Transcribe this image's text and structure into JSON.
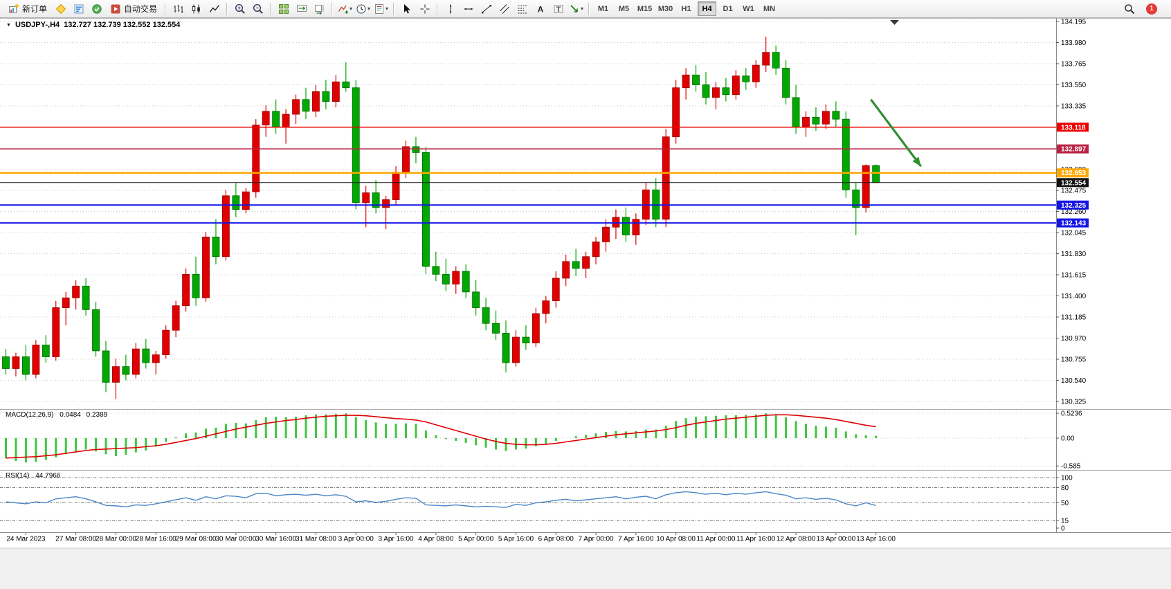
{
  "window": {
    "menu_marker": "▼",
    "symbol_period": "USDJPY-,H4",
    "quote": "132.727 132.739 132.552 132.554"
  },
  "toolbar": {
    "groups": [
      {
        "name": "trade",
        "items": [
          {
            "name": "new-order-button",
            "icon": "new-order-icon",
            "label": "新订单"
          },
          {
            "name": "metaeditor-button",
            "icon": "metaeditor-icon"
          },
          {
            "name": "market-depth-button",
            "icon": "market-depth-icon"
          },
          {
            "name": "market-watch-button",
            "icon": "market-watch-icon"
          },
          {
            "name": "autotrading-button",
            "icon": "autotrading-icon",
            "label": "自动交易"
          }
        ]
      },
      {
        "name": "chart-types",
        "items": [
          {
            "name": "bar-chart-button",
            "icon": "bar-chart-icon"
          },
          {
            "name": "candlestick-button",
            "icon": "candlestick-icon"
          },
          {
            "name": "line-chart-button",
            "icon": "line-chart-icon"
          }
        ]
      },
      {
        "name": "zoom",
        "items": [
          {
            "name": "zoom-in-button",
            "icon": "zoom-in-icon"
          },
          {
            "name": "zoom-out-button",
            "icon": "zoom-out-icon"
          }
        ]
      },
      {
        "name": "windows",
        "items": [
          {
            "name": "tile-windows-button",
            "icon": "tile-windows-icon"
          },
          {
            "name": "auto-scroll-button",
            "icon": "auto-scroll-icon"
          },
          {
            "name": "chart-shift-button",
            "icon": "chart-shift-icon"
          }
        ]
      },
      {
        "name": "chart-tools",
        "items": [
          {
            "name": "indicators-button",
            "icon": "indicators-icon",
            "dropdown": true
          },
          {
            "name": "periods-button",
            "icon": "periods-icon",
            "dropdown": true
          },
          {
            "name": "templates-button",
            "icon": "templates-icon",
            "dropdown": true
          }
        ]
      },
      {
        "name": "cursor-tools",
        "items": [
          {
            "name": "cursor-button",
            "icon": "cursor-icon"
          },
          {
            "name": "crosshair-button",
            "icon": "crosshair-icon"
          }
        ]
      },
      {
        "name": "drawing-tools",
        "items": [
          {
            "name": "vertical-line-button",
            "icon": "vline-icon"
          },
          {
            "name": "horizontal-line-button",
            "icon": "hline-icon"
          },
          {
            "name": "trendline-button",
            "icon": "trendline-icon"
          },
          {
            "name": "channel-button",
            "icon": "channel-icon"
          },
          {
            "name": "fibonacci-button",
            "icon": "fibonacci-icon"
          },
          {
            "name": "text-button",
            "icon": "text-icon"
          },
          {
            "name": "label-button",
            "icon": "label-icon"
          },
          {
            "name": "arrows-button",
            "icon": "arrows-icon",
            "dropdown": true
          }
        ]
      },
      {
        "name": "timeframes",
        "items": [
          {
            "name": "tf-m1-button",
            "label": "M1"
          },
          {
            "name": "tf-m5-button",
            "label": "M5"
          },
          {
            "name": "tf-m15-button",
            "label": "M15"
          },
          {
            "name": "tf-m30-button",
            "label": "M30"
          },
          {
            "name": "tf-h1-button",
            "label": "H1"
          },
          {
            "name": "tf-h4-button",
            "label": "H4",
            "active": true
          },
          {
            "name": "tf-d1-button",
            "label": "D1"
          },
          {
            "name": "tf-w1-button",
            "label": "W1"
          },
          {
            "name": "tf-mn-button",
            "label": "MN"
          }
        ]
      }
    ],
    "right": [
      {
        "name": "search-button",
        "icon": "search-icon"
      },
      {
        "name": "notifications-badge",
        "badge": "1"
      }
    ]
  },
  "chart_data": {
    "type": "candlestick",
    "symbol": "USDJPY-",
    "timeframe": "H4",
    "last_quote": {
      "open": "132.727",
      "high": "132.739",
      "low": "132.552",
      "close": "132.554"
    },
    "colors": {
      "up": "#e00000",
      "up_stroke": "#990000",
      "down": "#00a800",
      "down_stroke": "#006600",
      "grid": "#c9c9c9"
    },
    "price_axis": {
      "ticks": [
        "134.195",
        "133.980",
        "133.765",
        "133.550",
        "133.335",
        "133.120",
        "132.905",
        "132.690",
        "132.475",
        "132.260",
        "132.045",
        "131.830",
        "131.615",
        "131.400",
        "131.185",
        "130.970",
        "130.755",
        "130.540",
        "130.325"
      ]
    },
    "candles": [
      [
        130.78,
        130.86,
        130.6,
        130.66
      ],
      [
        130.66,
        130.82,
        130.58,
        130.78
      ],
      [
        130.78,
        130.9,
        130.54,
        130.6
      ],
      [
        130.6,
        130.95,
        130.56,
        130.9
      ],
      [
        130.9,
        131.0,
        130.72,
        130.78
      ],
      [
        130.78,
        131.35,
        130.74,
        131.28
      ],
      [
        131.28,
        131.44,
        131.1,
        131.38
      ],
      [
        131.38,
        131.56,
        131.26,
        131.5
      ],
      [
        131.5,
        131.58,
        131.2,
        131.26
      ],
      [
        131.26,
        131.34,
        130.78,
        130.84
      ],
      [
        130.84,
        130.94,
        130.42,
        130.52
      ],
      [
        130.52,
        130.76,
        130.35,
        130.68
      ],
      [
        130.68,
        130.8,
        130.54,
        130.6
      ],
      [
        130.6,
        130.92,
        130.56,
        130.86
      ],
      [
        130.86,
        130.96,
        130.66,
        130.72
      ],
      [
        130.72,
        130.84,
        130.6,
        130.8
      ],
      [
        130.8,
        131.1,
        130.76,
        131.05
      ],
      [
        131.05,
        131.35,
        130.98,
        131.3
      ],
      [
        131.3,
        131.68,
        131.24,
        131.62
      ],
      [
        131.62,
        131.8,
        131.3,
        131.38
      ],
      [
        131.38,
        132.05,
        131.34,
        132.0
      ],
      [
        132.0,
        132.18,
        131.72,
        131.8
      ],
      [
        131.8,
        132.48,
        131.76,
        132.42
      ],
      [
        132.42,
        132.55,
        132.2,
        132.28
      ],
      [
        132.28,
        132.5,
        132.24,
        132.46
      ],
      [
        132.46,
        133.2,
        132.4,
        133.14
      ],
      [
        133.14,
        133.34,
        133.02,
        133.28
      ],
      [
        133.28,
        133.4,
        133.05,
        133.12
      ],
      [
        133.12,
        133.3,
        132.95,
        133.25
      ],
      [
        133.25,
        133.45,
        133.15,
        133.4
      ],
      [
        133.4,
        133.52,
        133.2,
        133.28
      ],
      [
        133.28,
        133.55,
        133.22,
        133.48
      ],
      [
        133.48,
        133.6,
        133.3,
        133.38
      ],
      [
        133.38,
        133.65,
        133.32,
        133.58
      ],
      [
        133.58,
        133.78,
        133.48,
        133.52
      ],
      [
        133.52,
        133.6,
        132.28,
        132.35
      ],
      [
        132.35,
        132.52,
        132.1,
        132.45
      ],
      [
        132.45,
        132.58,
        132.24,
        132.3
      ],
      [
        132.3,
        132.42,
        132.08,
        132.38
      ],
      [
        132.38,
        132.72,
        132.32,
        132.66
      ],
      [
        132.66,
        132.98,
        132.6,
        132.92
      ],
      [
        132.92,
        133.02,
        132.75,
        132.86
      ],
      [
        132.86,
        132.92,
        131.62,
        131.7
      ],
      [
        131.7,
        131.85,
        131.55,
        131.62
      ],
      [
        131.62,
        131.78,
        131.45,
        131.52
      ],
      [
        131.52,
        131.7,
        131.42,
        131.65
      ],
      [
        131.65,
        131.72,
        131.38,
        131.44
      ],
      [
        131.44,
        131.56,
        131.2,
        131.28
      ],
      [
        131.28,
        131.38,
        131.05,
        131.12
      ],
      [
        131.12,
        131.25,
        130.95,
        131.02
      ],
      [
        131.02,
        131.15,
        130.62,
        130.72
      ],
      [
        130.72,
        131.05,
        130.68,
        130.98
      ],
      [
        130.98,
        131.1,
        130.85,
        130.92
      ],
      [
        130.92,
        131.28,
        130.88,
        131.22
      ],
      [
        131.22,
        131.4,
        131.12,
        131.35
      ],
      [
        131.35,
        131.65,
        131.28,
        131.58
      ],
      [
        131.58,
        131.82,
        131.5,
        131.75
      ],
      [
        131.75,
        131.88,
        131.6,
        131.68
      ],
      [
        131.68,
        131.85,
        131.58,
        131.8
      ],
      [
        131.8,
        132.0,
        131.72,
        131.95
      ],
      [
        131.95,
        132.18,
        131.85,
        132.1
      ],
      [
        132.1,
        132.28,
        131.98,
        132.2
      ],
      [
        132.2,
        132.3,
        131.95,
        132.02
      ],
      [
        132.02,
        132.24,
        131.92,
        132.18
      ],
      [
        132.18,
        132.55,
        132.12,
        132.48
      ],
      [
        132.48,
        132.6,
        132.1,
        132.18
      ],
      [
        132.18,
        133.1,
        132.1,
        133.02
      ],
      [
        133.02,
        133.6,
        132.95,
        133.52
      ],
      [
        133.52,
        133.72,
        133.4,
        133.65
      ],
      [
        133.65,
        133.75,
        133.48,
        133.55
      ],
      [
        133.55,
        133.68,
        133.35,
        133.42
      ],
      [
        133.42,
        133.58,
        133.3,
        133.52
      ],
      [
        133.52,
        133.62,
        133.38,
        133.45
      ],
      [
        133.45,
        133.7,
        133.4,
        133.64
      ],
      [
        133.64,
        133.72,
        133.5,
        133.58
      ],
      [
        133.58,
        133.8,
        133.52,
        133.75
      ],
      [
        133.75,
        134.04,
        133.68,
        133.88
      ],
      [
        133.88,
        133.95,
        133.65,
        133.72
      ],
      [
        133.72,
        133.8,
        133.35,
        133.42
      ],
      [
        133.42,
        133.55,
        133.05,
        133.12
      ],
      [
        133.12,
        133.28,
        133.02,
        133.22
      ],
      [
        133.22,
        133.32,
        133.08,
        133.15
      ],
      [
        133.15,
        133.35,
        133.1,
        133.28
      ],
      [
        133.28,
        133.38,
        133.12,
        133.2
      ],
      [
        133.2,
        133.28,
        132.4,
        132.48
      ],
      [
        132.48,
        132.55,
        132.02,
        132.3
      ],
      [
        132.3,
        132.74,
        132.25,
        132.727
      ],
      [
        132.727,
        132.739,
        132.552,
        132.554
      ]
    ],
    "hlines": [
      {
        "price": 133.118,
        "label": "133.118",
        "color": "#ee0000",
        "width": 1.5
      },
      {
        "price": 132.897,
        "label": "132.897",
        "color": "#bb2244",
        "width": 1.5
      },
      {
        "price": 132.653,
        "label": "132.653",
        "color": "#ffa800",
        "width": 2.5
      },
      {
        "price": 132.554,
        "label": "132.554",
        "color": "#111111",
        "width": 1
      },
      {
        "price": 132.325,
        "label": "132.325",
        "color": "#1414e6",
        "width": 2
      },
      {
        "price": 132.143,
        "label": "132.143",
        "color": "#1414e6",
        "width": 2
      }
    ],
    "arrow": {
      "from": {
        "index": 86.5,
        "price": 133.4
      },
      "to": {
        "index": 91.5,
        "price": 132.72
      },
      "color": "#2f8f2f"
    },
    "macd": {
      "name": "MACD(12,26,9)",
      "value": "0.0484",
      "signal_value": "0.2389",
      "axis_labels": [
        "0.5236",
        "0.00",
        "-0.585"
      ],
      "axis_values": [
        0.5236,
        0,
        -0.585
      ],
      "hist_color": "#3fc53f",
      "signal_color": "#e00000",
      "histogram": [
        -0.42,
        -0.48,
        -0.51,
        -0.5,
        -0.46,
        -0.4,
        -0.34,
        -0.28,
        -0.24,
        -0.28,
        -0.34,
        -0.38,
        -0.35,
        -0.3,
        -0.26,
        -0.18,
        -0.08,
        0.02,
        0.1,
        0.12,
        0.2,
        0.22,
        0.3,
        0.32,
        0.31,
        0.38,
        0.44,
        0.45,
        0.44,
        0.45,
        0.48,
        0.5,
        0.5,
        0.51,
        0.52,
        0.44,
        0.38,
        0.33,
        0.3,
        0.3,
        0.31,
        0.3,
        0.16,
        0.06,
        -0.02,
        -0.06,
        -0.1,
        -0.15,
        -0.2,
        -0.24,
        -0.27,
        -0.24,
        -0.22,
        -0.17,
        -0.12,
        -0.06,
        0.0,
        0.04,
        0.07,
        0.1,
        0.13,
        0.15,
        0.14,
        0.15,
        0.18,
        0.18,
        0.26,
        0.36,
        0.42,
        0.45,
        0.46,
        0.47,
        0.48,
        0.48,
        0.49,
        0.5,
        0.52,
        0.5,
        0.44,
        0.36,
        0.3,
        0.26,
        0.24,
        0.22,
        0.14,
        0.08,
        0.06,
        0.0484
      ],
      "signal": [
        -0.42,
        -0.41,
        -0.4,
        -0.39,
        -0.37,
        -0.35,
        -0.32,
        -0.29,
        -0.26,
        -0.24,
        -0.23,
        -0.22,
        -0.21,
        -0.2,
        -0.18,
        -0.16,
        -0.13,
        -0.09,
        -0.05,
        -0.01,
        0.04,
        0.09,
        0.14,
        0.19,
        0.23,
        0.27,
        0.31,
        0.34,
        0.37,
        0.39,
        0.42,
        0.44,
        0.46,
        0.47,
        0.48,
        0.48,
        0.47,
        0.45,
        0.43,
        0.41,
        0.4,
        0.38,
        0.34,
        0.28,
        0.22,
        0.16,
        0.1,
        0.04,
        -0.02,
        -0.07,
        -0.11,
        -0.13,
        -0.14,
        -0.14,
        -0.13,
        -0.11,
        -0.08,
        -0.05,
        -0.02,
        0.01,
        0.04,
        0.07,
        0.09,
        0.11,
        0.13,
        0.15,
        0.18,
        0.22,
        0.27,
        0.31,
        0.34,
        0.37,
        0.4,
        0.42,
        0.44,
        0.46,
        0.48,
        0.49,
        0.49,
        0.48,
        0.46,
        0.44,
        0.42,
        0.39,
        0.35,
        0.31,
        0.27,
        0.2389
      ]
    },
    "rsi": {
      "name": "RSI(14)",
      "value": "44.7966",
      "color": "#4a86c8",
      "axis_labels": [
        "100",
        "80",
        "50",
        "15",
        "0"
      ],
      "axis_values": [
        100,
        80,
        50,
        15,
        0
      ],
      "levels": [
        100,
        80,
        50,
        15
      ],
      "values": [
        52,
        50,
        48,
        52,
        50,
        58,
        60,
        62,
        58,
        52,
        45,
        44,
        42,
        46,
        45,
        48,
        52,
        56,
        60,
        55,
        62,
        58,
        64,
        63,
        60,
        68,
        69,
        64,
        66,
        67,
        65,
        67,
        64,
        66,
        63,
        52,
        54,
        51,
        53,
        57,
        60,
        59,
        46,
        45,
        44,
        46,
        44,
        42,
        43,
        42,
        41,
        47,
        45,
        50,
        52,
        55,
        57,
        54,
        56,
        58,
        60,
        62,
        58,
        61,
        63,
        58,
        66,
        70,
        72,
        70,
        67,
        69,
        66,
        69,
        67,
        70,
        72,
        68,
        65,
        58,
        60,
        57,
        59,
        56,
        48,
        44,
        50,
        44.7966
      ]
    },
    "time_labels": [
      {
        "text": "24 Mar 2023",
        "index": 2
      },
      {
        "text": "27 Mar 08:00",
        "index": 7
      },
      {
        "text": "28 Mar 00:00",
        "index": 11
      },
      {
        "text": "28 Mar 16:00",
        "index": 15
      },
      {
        "text": "29 Mar 08:00",
        "index": 19
      },
      {
        "text": "30 Mar 00:00",
        "index": 23
      },
      {
        "text": "30 Mar 16:00",
        "index": 27
      },
      {
        "text": "31 Mar 08:00",
        "index": 31
      },
      {
        "text": "3 Apr 00:00",
        "index": 35
      },
      {
        "text": "3 Apr 16:00",
        "index": 39
      },
      {
        "text": "4 Apr 08:00",
        "index": 43
      },
      {
        "text": "5 Apr 00:00",
        "index": 47
      },
      {
        "text": "5 Apr 16:00",
        "index": 51
      },
      {
        "text": "6 Apr 08:00",
        "index": 55
      },
      {
        "text": "7 Apr 00:00",
        "index": 59
      },
      {
        "text": "7 Apr 16:00",
        "index": 63
      },
      {
        "text": "10 Apr 08:00",
        "index": 67
      },
      {
        "text": "11 Apr 00:00",
        "index": 71
      },
      {
        "text": "11 Apr 16:00",
        "index": 75
      },
      {
        "text": "12 Apr 08:00",
        "index": 79
      },
      {
        "text": "13 Apr 00:00",
        "index": 83
      },
      {
        "text": "13 Apr 16:00",
        "index": 87
      }
    ]
  }
}
